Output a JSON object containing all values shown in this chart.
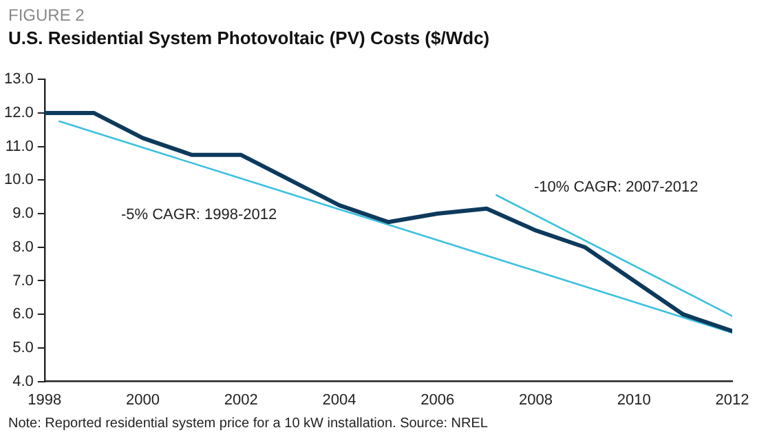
{
  "chart_data": {
    "type": "line",
    "title": "U.S. Residential System Photovoltaic (PV) Costs ($/Wdc)",
    "x": [
      1998,
      1999,
      2000,
      2001,
      2002,
      2003,
      2004,
      2005,
      2006,
      2007,
      2008,
      2009,
      2010,
      2011,
      2012
    ],
    "series": [
      {
        "color": "#0d3a5c",
        "values": [
          12.0,
          12.0,
          11.25,
          10.75,
          10.75,
          10.0,
          9.25,
          8.75,
          9.0,
          9.15,
          8.5,
          8.0,
          7.0,
          6.0,
          5.5
        ]
      },
      {
        "type": "line",
        "color": "#3cc0e0",
        "x": [
          1998.3,
          2012
        ],
        "values": [
          11.75,
          5.45
        ]
      },
      {
        "type": "line",
        "color": "#3cc0e0",
        "x": [
          2007.2,
          2012
        ],
        "values": [
          9.55,
          5.95
        ]
      }
    ],
    "xlim": [
      1998,
      2012
    ],
    "xticks": [
      1998,
      2000,
      2002,
      2004,
      2006,
      2008,
      2010,
      2012
    ],
    "ylim": [
      4,
      13
    ],
    "yticks": [
      {
        "value": 4,
        "label": "4.0"
      },
      {
        "value": 5,
        "label": "5.0"
      },
      {
        "value": 6,
        "label": "6.0"
      },
      {
        "value": 7,
        "label": "7.0"
      },
      {
        "value": 8,
        "label": "8.0"
      },
      {
        "value": 9,
        "label": "9.0"
      },
      {
        "value": 10,
        "label": "10.0"
      },
      {
        "value": 11,
        "label": "11.0"
      },
      {
        "value": 12,
        "label": "12.0"
      },
      {
        "value": 13,
        "label": "13.0"
      }
    ],
    "grid": false,
    "legend": false,
    "marker": "none",
    "line_style": "solid",
    "annotations": [
      "FIGURE 2",
      "-5% CAGR: 1998-2012",
      "-10% CAGR: 2007-2012",
      "Note: Reported residential system price for a 10 kW installation. Source: NREL"
    ]
  }
}
